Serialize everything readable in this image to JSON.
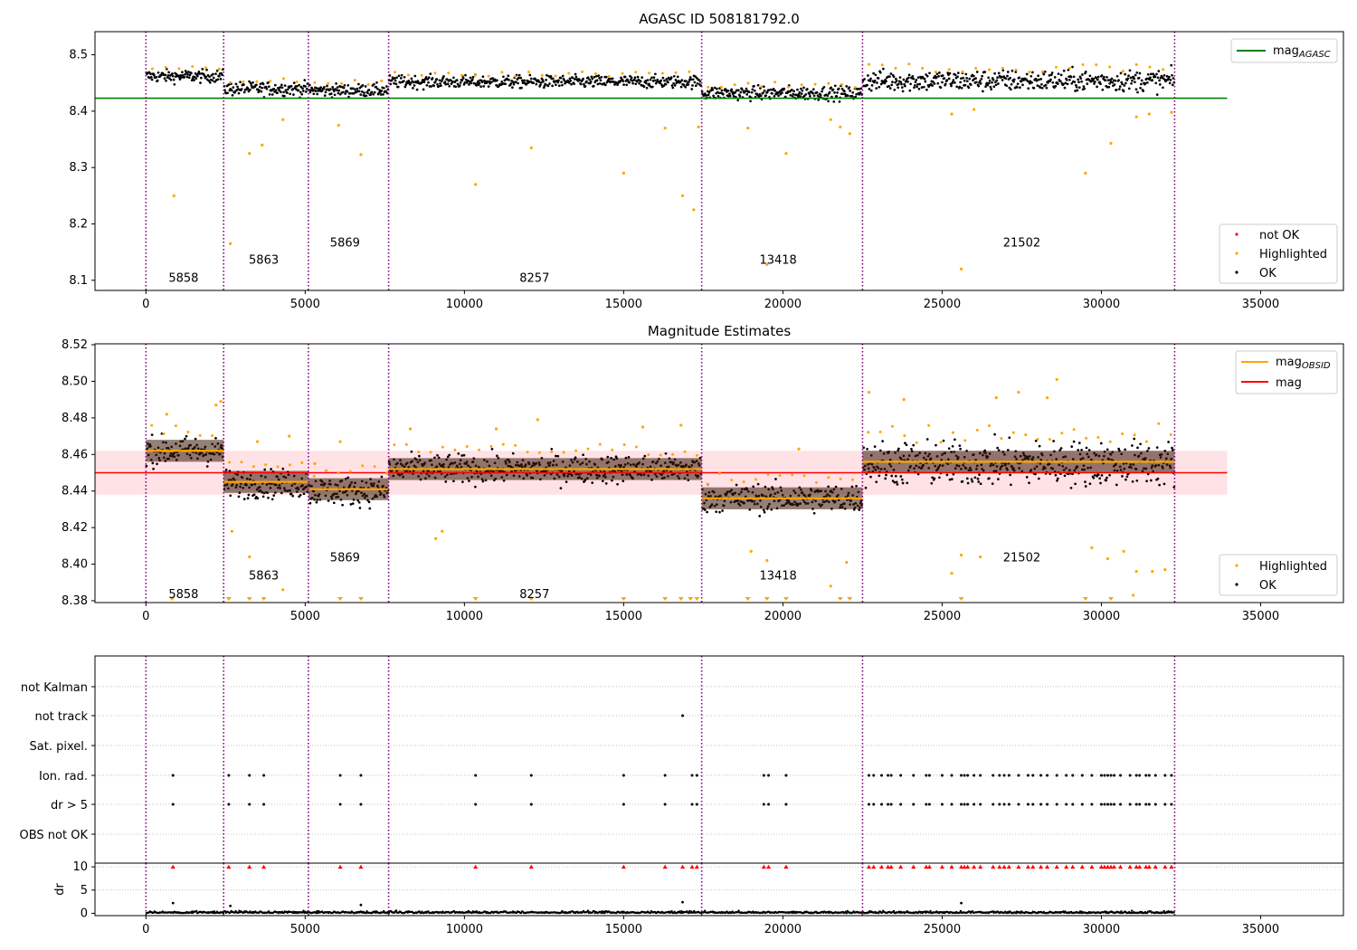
{
  "chart_data": [
    {
      "type": "scatter",
      "title": "AGASC ID 508181792.0",
      "xlim": [
        -1600,
        37600
      ],
      "ylim": [
        8.082,
        8.541
      ],
      "x_ticks": [
        0,
        5000,
        10000,
        15000,
        20000,
        25000,
        30000,
        35000
      ],
      "x_tick_labels": [
        "0",
        "5000",
        "10000",
        "15000",
        "20000",
        "25000",
        "30000",
        "35000"
      ],
      "y_ticks": [
        8.1,
        8.2,
        8.3,
        8.4,
        8.5
      ],
      "y_tick_labels": [
        "8.1",
        "8.2",
        "8.3",
        "8.4",
        "8.5"
      ],
      "obsid_boundaries": [
        0,
        2440,
        5100,
        7620,
        17450,
        22500,
        32300
      ],
      "obsid_labels": [
        {
          "text": "5858",
          "x": 1180,
          "y": 8.105
        },
        {
          "text": "5863",
          "x": 3700,
          "y": 8.137
        },
        {
          "text": "5869",
          "x": 6250,
          "y": 8.168
        },
        {
          "text": "8257",
          "x": 12200,
          "y": 8.105
        },
        {
          "text": "13418",
          "x": 19850,
          "y": 8.137
        },
        {
          "text": "21502",
          "x": 27500,
          "y": 8.168
        }
      ],
      "reference_line": {
        "name": "mag_AGASC",
        "y": 8.423,
        "x_range": [
          -1600,
          33950
        ],
        "color": "#008000"
      },
      "segments": [
        {
          "x0": 0,
          "x1": 2440,
          "mean": 8.462,
          "spread": 0.01
        },
        {
          "x0": 2440,
          "x1": 5100,
          "mean": 8.44,
          "spread": 0.011
        },
        {
          "x0": 5100,
          "x1": 7620,
          "mean": 8.437,
          "spread": 0.01
        },
        {
          "x0": 7620,
          "x1": 17450,
          "mean": 8.452,
          "spread": 0.01
        },
        {
          "x0": 17450,
          "x1": 22500,
          "mean": 8.432,
          "spread": 0.011
        },
        {
          "x0": 22500,
          "x1": 32300,
          "mean": 8.454,
          "spread": 0.017
        }
      ],
      "highlighted_outliers": [
        {
          "x": 880,
          "y": 8.25
        },
        {
          "x": 2650,
          "y": 8.165
        },
        {
          "x": 3250,
          "y": 8.325
        },
        {
          "x": 3650,
          "y": 8.34
        },
        {
          "x": 4300,
          "y": 8.385
        },
        {
          "x": 6050,
          "y": 8.375
        },
        {
          "x": 6750,
          "y": 8.323
        },
        {
          "x": 10350,
          "y": 8.27
        },
        {
          "x": 12100,
          "y": 8.335
        },
        {
          "x": 15000,
          "y": 8.29
        },
        {
          "x": 16300,
          "y": 8.37
        },
        {
          "x": 16850,
          "y": 8.25
        },
        {
          "x": 17200,
          "y": 8.225
        },
        {
          "x": 17350,
          "y": 8.372
        },
        {
          "x": 18900,
          "y": 8.37
        },
        {
          "x": 19500,
          "y": 8.128
        },
        {
          "x": 20100,
          "y": 8.325
        },
        {
          "x": 21500,
          "y": 8.385
        },
        {
          "x": 21800,
          "y": 8.372
        },
        {
          "x": 22100,
          "y": 8.36
        },
        {
          "x": 25600,
          "y": 8.12
        },
        {
          "x": 25300,
          "y": 8.395
        },
        {
          "x": 26000,
          "y": 8.403
        },
        {
          "x": 29500,
          "y": 8.29
        },
        {
          "x": 30300,
          "y": 8.343
        },
        {
          "x": 31100,
          "y": 8.39
        },
        {
          "x": 31500,
          "y": 8.395
        },
        {
          "x": 32200,
          "y": 8.398
        }
      ],
      "legend_top": [
        {
          "label": "mag",
          "subscript": "AGASC",
          "color": "#008000"
        }
      ],
      "legend_bottom": [
        {
          "label": "not OK",
          "color": "#ff0000"
        },
        {
          "label": "Highlighted",
          "color": "#ffa500"
        },
        {
          "label": "OK",
          "color": "#000000"
        }
      ],
      "legend_placement": "top-right / bottom-right",
      "grid": false
    },
    {
      "type": "scatter",
      "title": "Magnitude Estimates",
      "xlim": [
        -1600,
        37600
      ],
      "ylim": [
        8.379,
        8.5205
      ],
      "x_ticks": [
        0,
        5000,
        10000,
        15000,
        20000,
        25000,
        30000,
        35000
      ],
      "x_tick_labels": [
        "0",
        "5000",
        "10000",
        "15000",
        "20000",
        "25000",
        "30000",
        "35000"
      ],
      "y_ticks": [
        8.38,
        8.4,
        8.42,
        8.44,
        8.46,
        8.48,
        8.5,
        8.52
      ],
      "y_tick_labels": [
        "8.38",
        "8.40",
        "8.42",
        "8.44",
        "8.46",
        "8.48",
        "8.50",
        "8.52"
      ],
      "obsid_labels": [
        {
          "text": "5858",
          "x": 1180,
          "y": 8.384
        },
        {
          "text": "5863",
          "x": 3700,
          "y": 8.394
        },
        {
          "text": "5869",
          "x": 6250,
          "y": 8.404
        },
        {
          "text": "8257",
          "x": 12200,
          "y": 8.384
        },
        {
          "text": "13418",
          "x": 19850,
          "y": 8.394
        },
        {
          "text": "21502",
          "x": 27500,
          "y": 8.404
        }
      ],
      "mag_line": {
        "name": "mag",
        "y": 8.45,
        "band": [
          8.438,
          8.462
        ],
        "x_range": [
          -1600,
          33950
        ],
        "color": "#ff0000"
      },
      "obsid_means": [
        {
          "x0": 0,
          "x1": 2440,
          "y": 8.462
        },
        {
          "x0": 2440,
          "x1": 5100,
          "y": 8.445
        },
        {
          "x0": 5100,
          "x1": 7620,
          "y": 8.441
        },
        {
          "x0": 7620,
          "x1": 17450,
          "y": 8.452
        },
        {
          "x0": 17450,
          "x1": 22500,
          "y": 8.436
        },
        {
          "x0": 22500,
          "x1": 32300,
          "y": 8.456
        }
      ],
      "segments": [
        {
          "x0": 0,
          "x1": 2440,
          "mean": 8.462,
          "spread": 0.007
        },
        {
          "x0": 2440,
          "x1": 5100,
          "mean": 8.444,
          "spread": 0.007
        },
        {
          "x0": 5100,
          "x1": 7620,
          "mean": 8.44,
          "spread": 0.007
        },
        {
          "x0": 7620,
          "x1": 17450,
          "mean": 8.452,
          "spread": 0.007
        },
        {
          "x0": 17450,
          "x1": 22500,
          "mean": 8.436,
          "spread": 0.007
        },
        {
          "x0": 22500,
          "x1": 32300,
          "mean": 8.455,
          "spread": 0.011
        }
      ],
      "highlighted_outliers": [
        {
          "x": 650,
          "y": 8.482
        },
        {
          "x": 2200,
          "y": 8.487
        },
        {
          "x": 2350,
          "y": 8.489
        },
        {
          "x": 2700,
          "y": 8.418
        },
        {
          "x": 3250,
          "y": 8.404
        },
        {
          "x": 3500,
          "y": 8.467
        },
        {
          "x": 4300,
          "y": 8.386
        },
        {
          "x": 4500,
          "y": 8.47
        },
        {
          "x": 5300,
          "y": 8.455
        },
        {
          "x": 6100,
          "y": 8.467
        },
        {
          "x": 8300,
          "y": 8.474
        },
        {
          "x": 9100,
          "y": 8.414
        },
        {
          "x": 9300,
          "y": 8.418
        },
        {
          "x": 11000,
          "y": 8.474
        },
        {
          "x": 12300,
          "y": 8.479
        },
        {
          "x": 15600,
          "y": 8.475
        },
        {
          "x": 16800,
          "y": 8.476
        },
        {
          "x": 19000,
          "y": 8.407
        },
        {
          "x": 19500,
          "y": 8.402
        },
        {
          "x": 20500,
          "y": 8.463
        },
        {
          "x": 21500,
          "y": 8.388
        },
        {
          "x": 22000,
          "y": 8.401
        },
        {
          "x": 22700,
          "y": 8.494
        },
        {
          "x": 23800,
          "y": 8.49
        },
        {
          "x": 25300,
          "y": 8.395
        },
        {
          "x": 25600,
          "y": 8.405
        },
        {
          "x": 26200,
          "y": 8.404
        },
        {
          "x": 26700,
          "y": 8.491
        },
        {
          "x": 27400,
          "y": 8.494
        },
        {
          "x": 28300,
          "y": 8.491
        },
        {
          "x": 28600,
          "y": 8.501
        },
        {
          "x": 29700,
          "y": 8.409
        },
        {
          "x": 30200,
          "y": 8.403
        },
        {
          "x": 30700,
          "y": 8.407
        },
        {
          "x": 31100,
          "y": 8.396
        },
        {
          "x": 31600,
          "y": 8.396
        },
        {
          "x": 32000,
          "y": 8.397
        },
        {
          "x": 31000,
          "y": 8.383
        }
      ],
      "clipped_below": [
        820,
        2600,
        3250,
        3700,
        6100,
        6750,
        10350,
        12100,
        15000,
        16300,
        16800,
        17100,
        17300,
        18900,
        19500,
        20100,
        21800,
        22100,
        25600,
        29500,
        30300
      ],
      "legend_top": [
        {
          "label": "mag",
          "subscript": "OBSID",
          "color": "#ffa500"
        },
        {
          "label": "mag",
          "subscript": "",
          "color": "#ff0000"
        }
      ],
      "legend_bottom": [
        {
          "label": "Highlighted",
          "color": "#ffa500"
        },
        {
          "label": "OK",
          "color": "#000000"
        }
      ],
      "legend_placement": "top-right / bottom-right",
      "grid": false
    },
    {
      "type": "scatter",
      "title": "",
      "xlim": [
        -1600,
        37600
      ],
      "categories": [
        "not Kalman",
        "not track",
        "Sat. pixel.",
        "Ion. rad.",
        "dr > 5",
        "OBS not OK"
      ],
      "flag_events": {
        "not track": [
          16850
        ],
        "Ion. rad.": [
          850,
          2600,
          3250,
          3700,
          6100,
          6750,
          10350,
          12100,
          15000,
          16300,
          17150,
          17300,
          19400,
          19550,
          20100,
          22700,
          22850,
          23100,
          23300,
          23400,
          23700,
          24100,
          24500,
          24600,
          25000,
          25300,
          25600,
          25700,
          25800,
          26000,
          26200,
          26600,
          26800,
          26950,
          27100,
          27400,
          27700,
          27850,
          28100,
          28300,
          28600,
          28900,
          29100,
          29400,
          29700,
          30000,
          30100,
          30200,
          30300,
          30400,
          30600,
          30900,
          31100,
          31200,
          31400,
          31500,
          31700,
          32000,
          32200
        ],
        "dr > 5": [
          850,
          2600,
          3250,
          3700,
          6100,
          6750,
          10350,
          12100,
          15000,
          16300,
          17150,
          17300,
          19400,
          19550,
          20100,
          22700,
          22850,
          23100,
          23300,
          23400,
          23700,
          24100,
          24500,
          24600,
          25000,
          25300,
          25600,
          25700,
          25800,
          26000,
          26200,
          26600,
          26800,
          26950,
          27100,
          27400,
          27700,
          27850,
          28100,
          28300,
          28600,
          28900,
          29100,
          29400,
          29700,
          30000,
          30100,
          30200,
          30300,
          30400,
          30600,
          30900,
          31100,
          31200,
          31400,
          31500,
          31700,
          32000,
          32200
        ]
      }
    },
    {
      "type": "scatter",
      "title": "",
      "ylabel": "dr",
      "xlim": [
        -1600,
        37600
      ],
      "ylim": [
        -0.5,
        10.8
      ],
      "x_ticks": [
        0,
        5000,
        10000,
        15000,
        20000,
        25000,
        30000,
        35000
      ],
      "x_tick_labels": [
        "0",
        "5000",
        "10000",
        "15000",
        "20000",
        "25000",
        "30000",
        "35000"
      ],
      "y_ticks": [
        0,
        5,
        10
      ],
      "y_tick_labels": [
        "0",
        "5",
        "10"
      ],
      "clipped_at_10": [
        850,
        2600,
        3250,
        3700,
        6100,
        6750,
        10350,
        12100,
        15000,
        16300,
        16850,
        17150,
        17300,
        19400,
        19550,
        20100,
        22700,
        22850,
        23100,
        23300,
        23400,
        23700,
        24100,
        24500,
        24600,
        25000,
        25300,
        25600,
        25700,
        25800,
        26000,
        26200,
        26600,
        26800,
        26950,
        27100,
        27400,
        27700,
        27850,
        28100,
        28300,
        28600,
        28900,
        29100,
        29400,
        29700,
        30000,
        30100,
        30200,
        30300,
        30400,
        30600,
        30900,
        31100,
        31200,
        31400,
        31500,
        31700,
        32000,
        32200
      ],
      "moderate": [
        {
          "x": 850,
          "y": 2.2
        },
        {
          "x": 2650,
          "y": 1.6
        },
        {
          "x": 6750,
          "y": 1.8
        },
        {
          "x": 16850,
          "y": 2.4
        },
        {
          "x": 25600,
          "y": 2.2
        }
      ]
    }
  ]
}
